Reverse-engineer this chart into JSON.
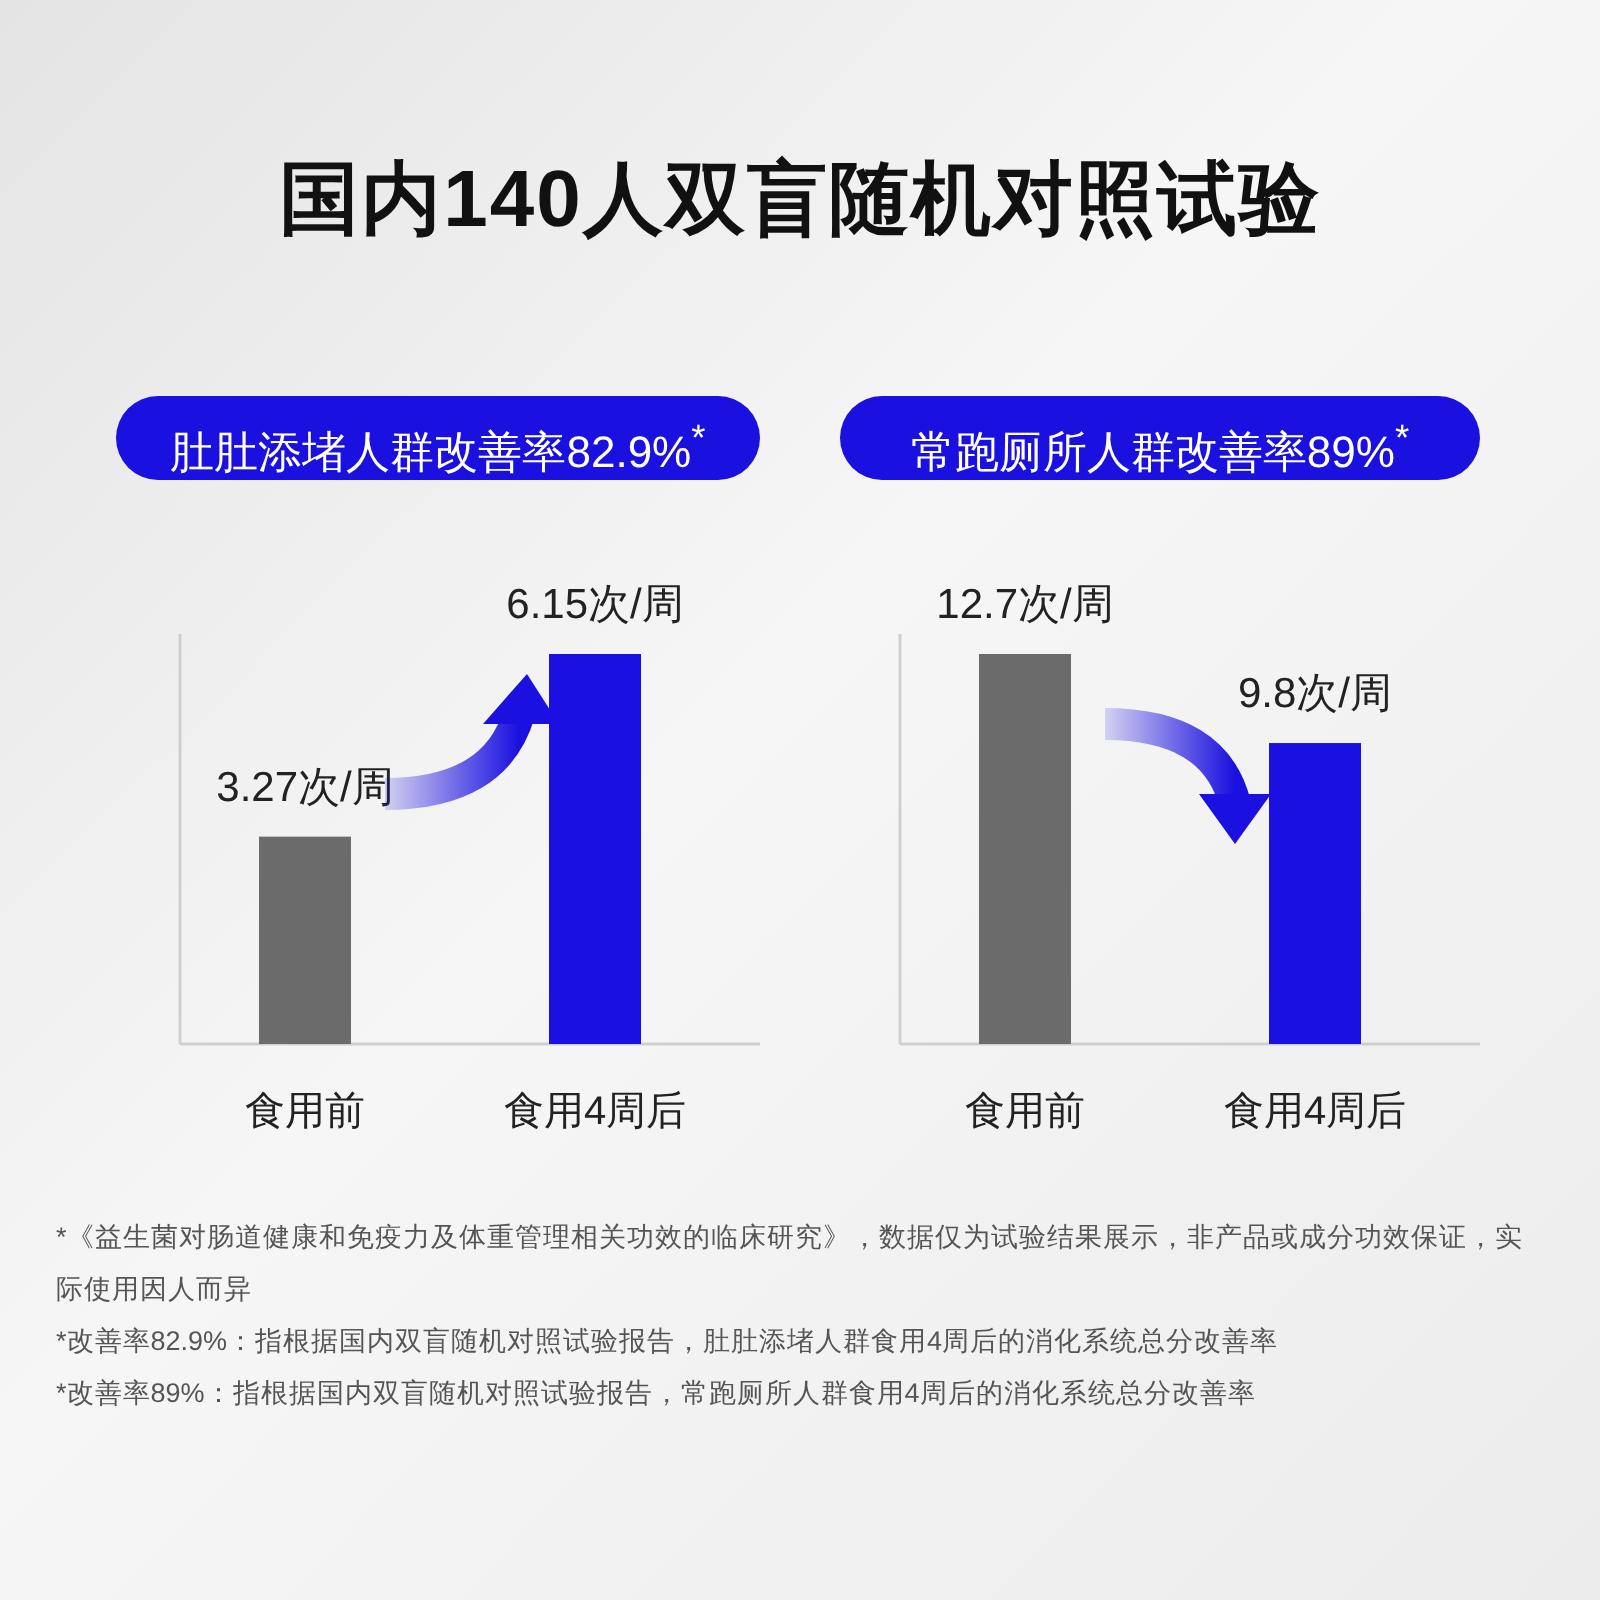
{
  "chart_data": [
    {
      "type": "bar",
      "title": "国内140人双盲随机对照试验",
      "subtitle": "肚肚添堵人群改善率82.9%$^{*}$",
      "categories": [
        "食用前",
        "食用4周后"
      ],
      "values": [
        3.27,
        6.15
      ],
      "colors": [
        "#6b6b6b",
        "#1a10e0"
      ],
      "value_labels": [
        "3.27次/周",
        "6.15次/周"
      ]
    },
    {
      "type": "bar",
      "subtitle": "常跑厕所人群改善率89%$^{*}$",
      "categories": [
        "食用前",
        "食用4周后"
      ],
      "values": [
        12.7,
        9.8
      ],
      "colors": [
        "#6b6b6b",
        "#1a10e0"
      ],
      "value_labels": [
        "12.7次/周",
        "9.8次/周"
      ],
      "annotations": [
        "*《益生菌对肠道健康和免疫力及体重管理相关功效的临床研究》，数据仅为试验结果展示，非产品或成分功效保证，实际使用因人而异",
        "*改善率82.9%：指根据国内双盲随机对照试验报告，肚肚添堵人群食用4周后的消化系统总分改善率",
        "*改善率89%：指根据国内双盲随机对照试验报告，常跑厕所人群食用4周后的消化系统总分改善率"
      ]
    }
  ]
}
